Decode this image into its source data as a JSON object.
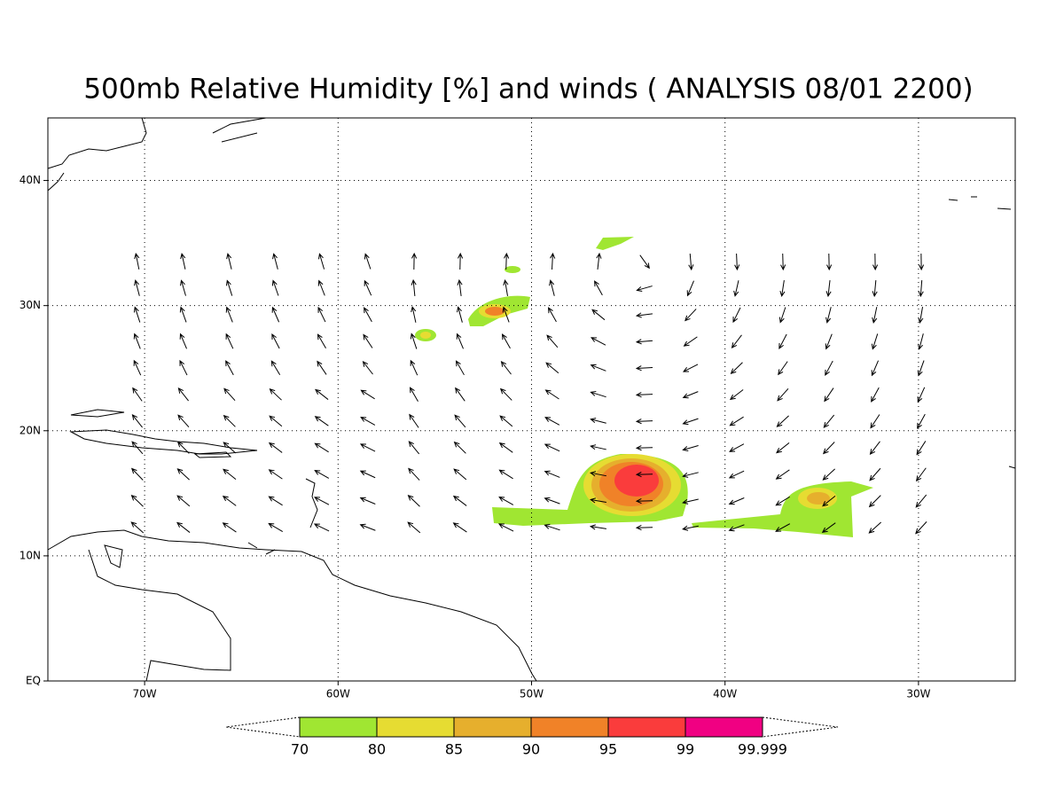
{
  "map": {
    "title": "500mb Relative Humidity [%] and winds ( ANALYSIS 08/01 2200)",
    "lon_range": [
      -75,
      -25
    ],
    "lat_range": [
      0,
      45
    ],
    "lon_ticks": [
      {
        "value": -70,
        "label": "70W"
      },
      {
        "value": -60,
        "label": "60W"
      },
      {
        "value": -50,
        "label": "50W"
      },
      {
        "value": -40,
        "label": "40W"
      },
      {
        "value": -30,
        "label": "30W"
      }
    ],
    "lat_ticks": [
      {
        "value": 0,
        "label": "EQ"
      },
      {
        "value": 10,
        "label": "10N"
      },
      {
        "value": 20,
        "label": "20N"
      },
      {
        "value": 30,
        "label": "30N"
      },
      {
        "value": 40,
        "label": "40N"
      }
    ],
    "grid": true,
    "colorbar": {
      "levels": [
        70,
        80,
        85,
        90,
        95,
        99,
        99.999
      ],
      "colors": [
        "#a0e632",
        "#e6dc32",
        "#e6af2d",
        "#f08228",
        "#fa3c3c",
        "#f00082"
      ]
    }
  }
}
